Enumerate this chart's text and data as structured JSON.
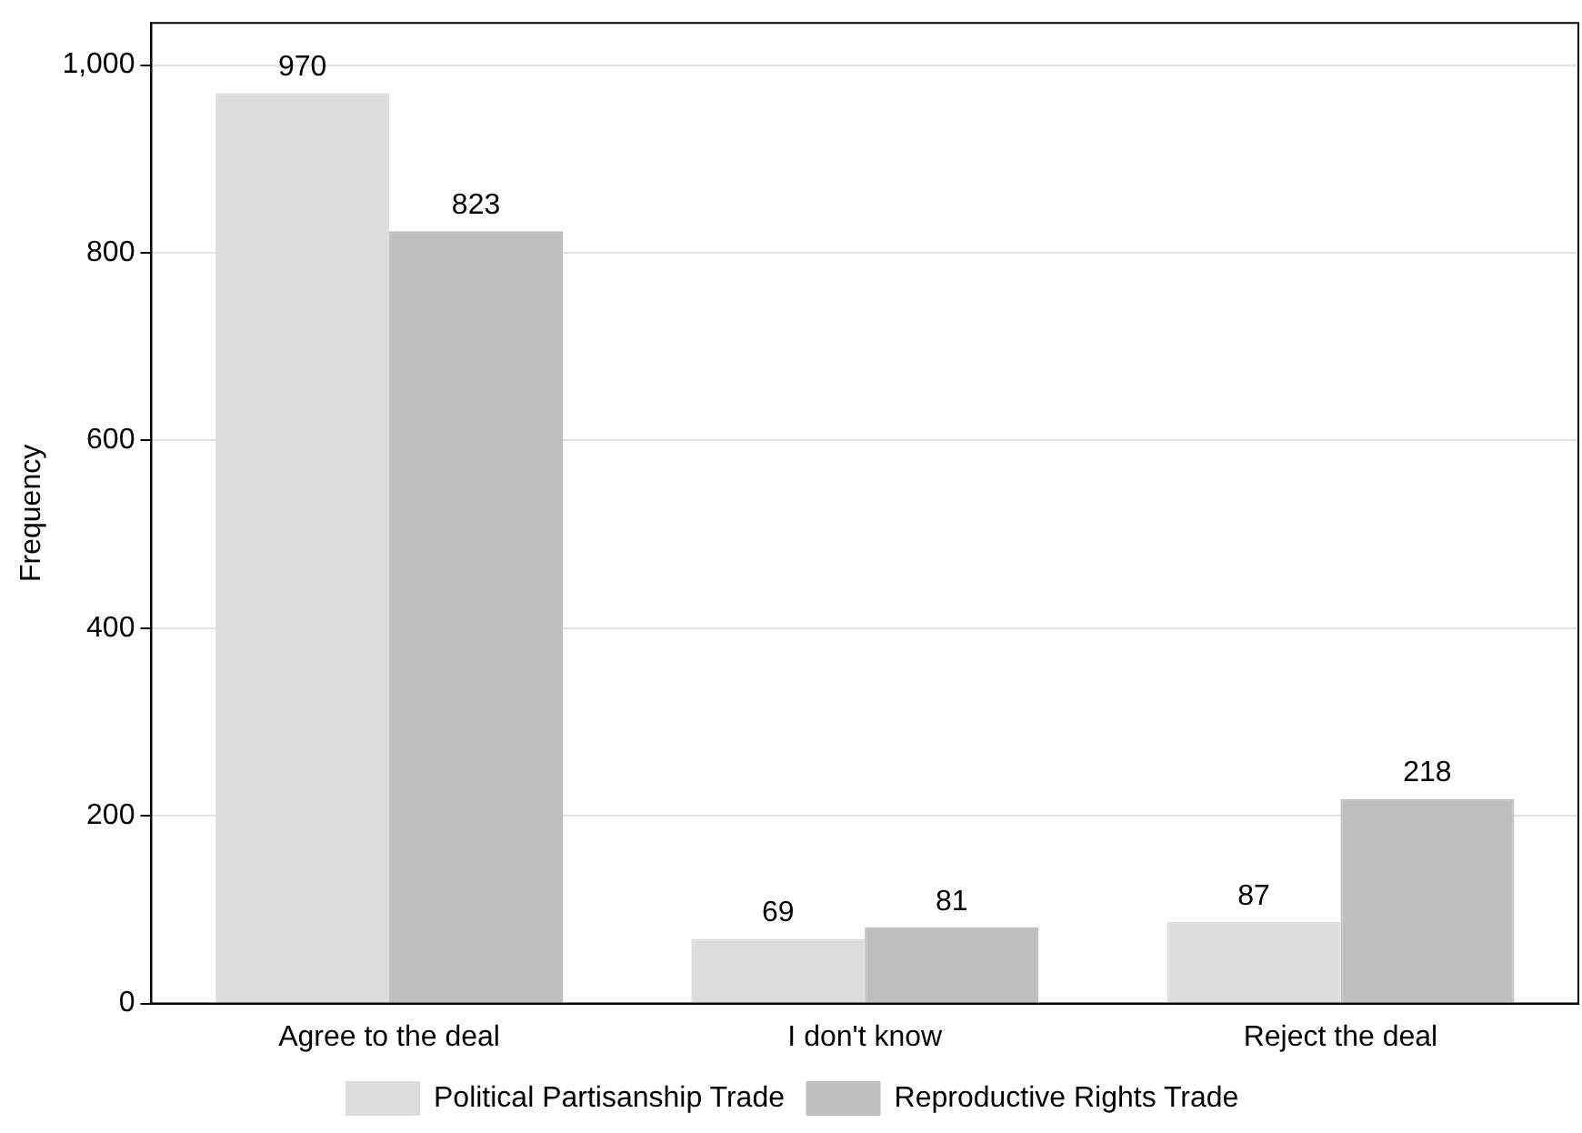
{
  "chart_data": {
    "type": "bar",
    "ylabel": "Frequency",
    "categories": [
      "Agree to the deal",
      "I don't know",
      "Reject the deal"
    ],
    "series": [
      {
        "name": "Political Partisanship Trade",
        "color": "#dcdcdc",
        "values": [
          970,
          69,
          87
        ]
      },
      {
        "name": "Reproductive Rights Trade",
        "color": "#bebebe",
        "values": [
          823,
          81,
          218
        ]
      }
    ],
    "ylim": [
      0,
      1045
    ],
    "yticks": [
      0,
      200,
      400,
      600,
      800,
      {
        "value": 1000,
        "label": "1,000"
      }
    ],
    "grid": "y",
    "legend": "bottom",
    "data_labels": true
  }
}
